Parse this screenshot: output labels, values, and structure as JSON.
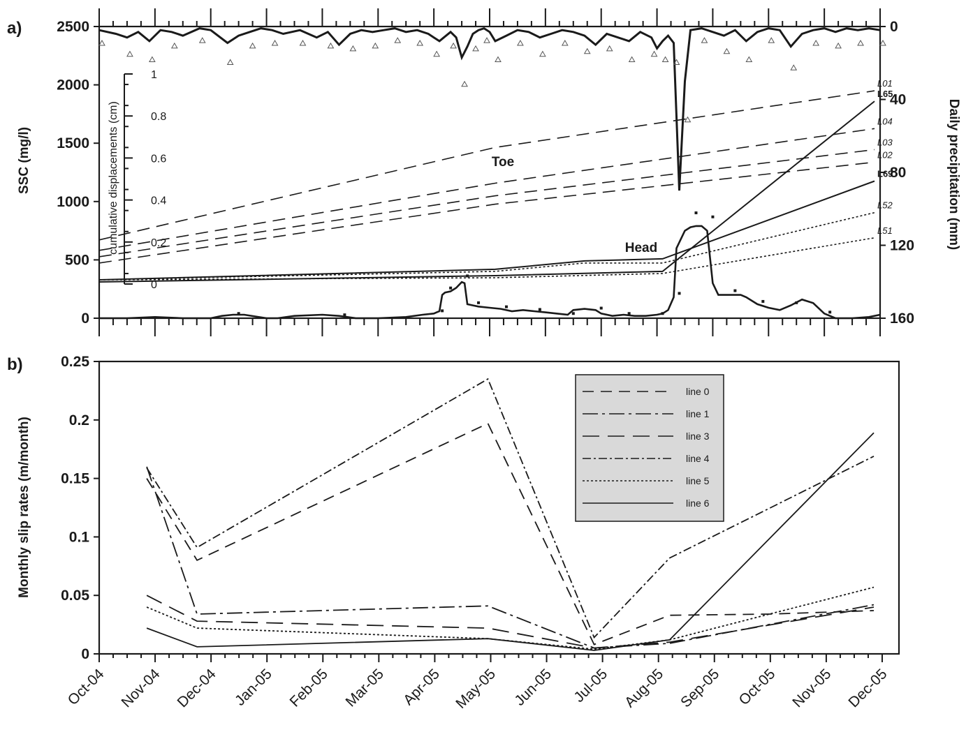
{
  "chart_data": [
    {
      "panel": "a)",
      "type": "line",
      "ylabel_left": "SSC (mg/l)",
      "ylim_left": [
        0,
        2500
      ],
      "yticks_left": [
        "0",
        "500",
        "1000",
        "1500",
        "2000",
        "2500"
      ],
      "ylabel_right": "Daily precipitation (mm)",
      "ylim_right": [
        0,
        160
      ],
      "yticks_right": [
        "0",
        "40",
        "80",
        "120",
        "160"
      ],
      "right_axis_inverted": true,
      "inset_label": "cumulative displacements (cm)",
      "inset_ylim": [
        0,
        1
      ],
      "inset_yticks": [
        "0",
        "0.2",
        "0.4",
        "0.6",
        "0.8",
        "1"
      ],
      "annotations": [
        "Toe",
        "Head"
      ],
      "months": [
        "Oct-04",
        "Nov-04",
        "Dec-04",
        "Jan-05",
        "Feb-05",
        "Mar-05",
        "Apr-05",
        "May-05",
        "Jun-05",
        "Jul-05",
        "Aug-05",
        "Sep-05",
        "Oct-05",
        "Nov-05",
        "Dec-05"
      ],
      "displacement_series": [
        {
          "name": "L01",
          "style": "dash",
          "x": [
            0.0,
            7.1,
            13.9
          ],
          "y": [
            0.21,
            0.65,
            0.92
          ]
        },
        {
          "name": "L04",
          "style": "dash",
          "x": [
            0.0,
            7.1,
            13.9
          ],
          "y": [
            0.16,
            0.48,
            0.74
          ]
        },
        {
          "name": "L03",
          "style": "dash",
          "x": [
            0.0,
            7.1,
            13.9
          ],
          "y": [
            0.13,
            0.42,
            0.64
          ]
        },
        {
          "name": "L02",
          "style": "dash",
          "x": [
            0.0,
            7.1,
            13.9
          ],
          "y": [
            0.1,
            0.38,
            0.58
          ]
        },
        {
          "name": "L65",
          "style": "solid",
          "x": [
            0.0,
            7.1,
            10.1,
            13.9
          ],
          "y": [
            0.01,
            0.04,
            0.06,
            0.87
          ]
        },
        {
          "name": "L69",
          "style": "solid",
          "x": [
            0.0,
            7.1,
            8.7,
            10.1,
            13.9
          ],
          "y": [
            0.02,
            0.07,
            0.11,
            0.12,
            0.49
          ]
        },
        {
          "name": "L52",
          "style": "dot",
          "x": [
            0.0,
            7.1,
            8.7,
            10.1,
            13.9
          ],
          "y": [
            0.02,
            0.06,
            0.1,
            0.1,
            0.34
          ]
        },
        {
          "name": "L51",
          "style": "dot",
          "x": [
            0.0,
            7.1,
            10.1,
            13.9
          ],
          "y": [
            0.02,
            0.03,
            0.05,
            0.22
          ]
        }
      ],
      "ssc_series": {
        "name": "",
        "x": [
          0,
          0.5,
          1,
          1.5,
          2,
          2.2,
          2.4,
          2.6,
          3,
          3.2,
          3.5,
          4,
          4.3,
          4.6,
          5,
          5.5,
          5.8,
          6,
          6.05,
          6.1,
          6.15,
          6.2,
          6.3,
          6.4,
          6.5,
          6.55,
          6.6,
          6.7,
          6.8,
          7,
          7.2,
          7.4,
          7.6,
          7.8,
          8,
          8.2,
          8.4,
          8.5,
          8.7,
          8.9,
          9,
          9.2,
          9.4,
          9.6,
          9.8,
          10,
          10.1,
          10.2,
          10.3,
          10.35,
          10.5,
          10.6,
          10.7,
          10.8,
          10.9,
          11,
          11.1,
          11.3,
          11.5,
          11.6,
          11.8,
          12,
          12.2,
          12.4,
          12.6,
          12.8,
          13,
          13.2,
          13.5,
          13.8,
          14
        ],
        "y": [
          0,
          0,
          10,
          0,
          0,
          20,
          30,
          30,
          0,
          0,
          20,
          30,
          20,
          0,
          0,
          10,
          30,
          40,
          50,
          60,
          200,
          220,
          230,
          260,
          310,
          300,
          120,
          110,
          100,
          90,
          80,
          60,
          70,
          60,
          50,
          40,
          30,
          70,
          80,
          70,
          40,
          20,
          30,
          20,
          20,
          30,
          40,
          70,
          180,
          600,
          750,
          780,
          790,
          790,
          750,
          300,
          200,
          200,
          200,
          180,
          120,
          90,
          70,
          110,
          160,
          130,
          40,
          0,
          0,
          10,
          30
        ]
      },
      "precipitation": {
        "name": "",
        "x": [
          0,
          0.3,
          0.5,
          0.7,
          0.9,
          1.1,
          1.3,
          1.5,
          1.8,
          2,
          2.3,
          2.5,
          2.7,
          2.9,
          3.1,
          3.3,
          3.6,
          3.9,
          4.1,
          4.3,
          4.5,
          4.7,
          4.9,
          5.1,
          5.3,
          5.5,
          5.7,
          5.9,
          6.0,
          6.1,
          6.3,
          6.4,
          6.5,
          6.6,
          6.7,
          6.8,
          6.9,
          7.0,
          7.1,
          7.3,
          7.5,
          7.7,
          7.9,
          8.1,
          8.3,
          8.5,
          8.7,
          8.9,
          9.1,
          9.3,
          9.5,
          9.7,
          9.9,
          10.0,
          10.1,
          10.2,
          10.3,
          10.4,
          10.5,
          10.6,
          10.8,
          11.0,
          11.2,
          11.4,
          11.6,
          11.8,
          12.0,
          12.2,
          12.4,
          12.6,
          12.8,
          13.0,
          13.2,
          13.4,
          13.6,
          13.8,
          14.0
        ],
        "y": [
          2,
          4,
          6,
          3,
          8,
          2,
          3,
          5,
          1,
          2,
          9,
          5,
          3,
          1,
          2,
          4,
          2,
          6,
          3,
          10,
          4,
          2,
          3,
          2,
          1,
          3,
          2,
          4,
          6,
          8,
          3,
          6,
          17,
          11,
          4,
          2,
          1,
          3,
          8,
          5,
          2,
          3,
          6,
          4,
          2,
          3,
          5,
          10,
          4,
          6,
          8,
          3,
          6,
          12,
          8,
          5,
          9,
          90,
          30,
          2,
          1,
          3,
          5,
          2,
          8,
          3,
          1,
          2,
          11,
          4,
          2,
          1,
          3,
          1,
          2,
          1,
          2
        ]
      }
    },
    {
      "panel": "b)",
      "type": "line",
      "ylabel": "Monthly slip rates (m/month)",
      "ylim": [
        0,
        0.25
      ],
      "yticks": [
        "0",
        "0.05",
        "0.1",
        "0.15",
        "0.2",
        "0.25"
      ],
      "xticks": [
        "Oct-04",
        "Nov-04",
        "Dec-04",
        "Jan-05",
        "Feb-05",
        "Mar-05",
        "Apr-05",
        "May-05",
        "Jun-05",
        "Jul-05",
        "Aug-05",
        "Sep-05",
        "Oct-05",
        "Nov-05",
        "Dec-05"
      ],
      "legend_position": "top-right",
      "legend_background": "#d9d9d9",
      "series": [
        {
          "name": "line 0",
          "dash": "16,10",
          "x": [
            0.85,
            1.75,
            6.95,
            8.85,
            10.2,
            12.0,
            13.85
          ],
          "y": [
            0.15,
            0.08,
            0.197,
            0.008,
            0.033,
            0.034,
            0.037
          ]
        },
        {
          "name": "line 1",
          "dash": "22,6,4,6",
          "x": [
            0.85,
            1.75,
            6.95,
            8.85,
            10.2,
            13.85
          ],
          "y": [
            0.16,
            0.034,
            0.041,
            0.005,
            0.009,
            0.042
          ]
        },
        {
          "name": "line 3",
          "dash": "24,12",
          "x": [
            0.85,
            1.75,
            6.95,
            8.85,
            10.2,
            13.85
          ],
          "y": [
            0.05,
            0.028,
            0.022,
            0.005,
            0.01,
            0.04
          ]
        },
        {
          "name": "line 4",
          "dash": "12,4,3,4",
          "x": [
            0.85,
            1.75,
            6.95,
            8.85,
            10.2,
            13.85
          ],
          "y": [
            0.159,
            0.091,
            0.235,
            0.014,
            0.082,
            0.169
          ]
        },
        {
          "name": "line 5",
          "dash": "3,3",
          "x": [
            0.85,
            1.75,
            6.95,
            8.85,
            10.2,
            13.85
          ],
          "y": [
            0.04,
            0.022,
            0.013,
            0.004,
            0.012,
            0.057
          ]
        },
        {
          "name": "line 6",
          "dash": "",
          "x": [
            0.85,
            1.75,
            6.95,
            8.85,
            10.2,
            13.85
          ],
          "y": [
            0.022,
            0.006,
            0.013,
            0.003,
            0.012,
            0.189
          ]
        }
      ]
    }
  ]
}
